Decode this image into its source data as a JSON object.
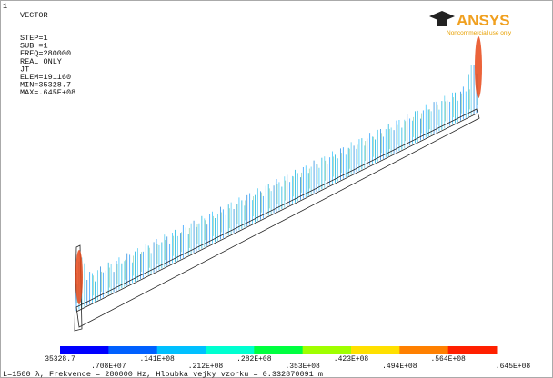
{
  "window_number": "1",
  "plot_title": "VECTOR",
  "info_lines": [
    "STEP=1",
    "SUB =1",
    "FREQ=280000",
    "REAL ONLY",
    "JT",
    "ELEM=191160",
    "MIN=35328.7",
    "MAX=.645E+08"
  ],
  "logo": {
    "name": "ANSYS",
    "note": "Noncommercial use only"
  },
  "legend": {
    "labels": [
      "35328.7",
      ".708E+07",
      ".141E+08",
      ".212E+08",
      ".282E+08",
      ".353E+08",
      ".423E+08",
      ".494E+08",
      ".564E+08",
      ".645E+08"
    ]
  },
  "caption": "L=1500 λ,  Frekvence = 280000 Hz,  Hloubka vejky vzorku = 0.332870091 m"
}
